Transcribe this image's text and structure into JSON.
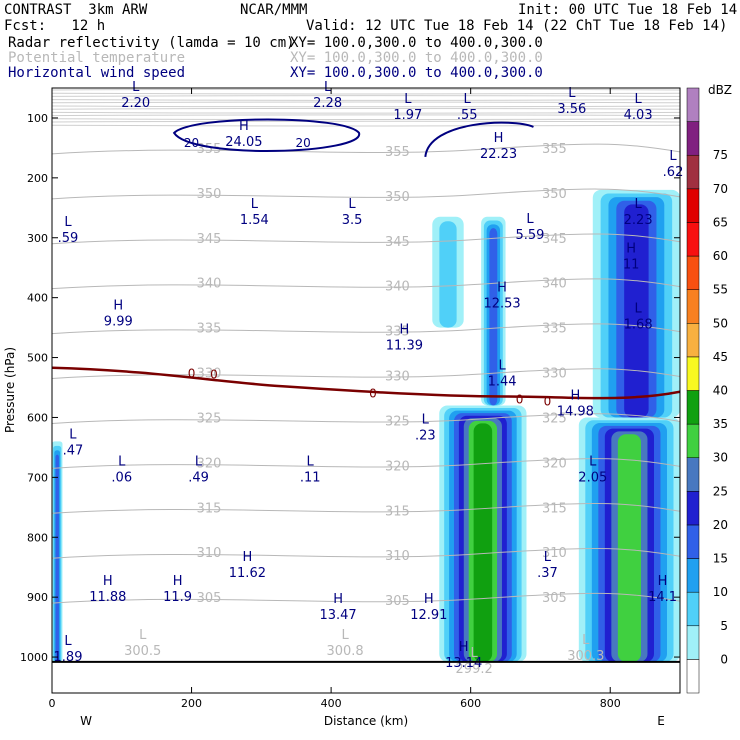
{
  "header": {
    "model": "CONTRAST  3km ARW",
    "center": "NCAR/MMM",
    "init": "Init: 00 UTC Tue 18 Feb 14",
    "fcst": "Fcst:   12 h",
    "valid": "Valid: 12 UTC Tue 18 Feb 14 (22 ChT Tue 18 Feb 14)",
    "fields": [
      {
        "name": "Radar reflectivity (lamda = 10 cm)",
        "xy": "XY= 100.0,300.0 to 400.0,300.0"
      },
      {
        "name": "Potential temperature",
        "xy": "XY= 100.0,300.0 to 400.0,300.0"
      },
      {
        "name": "Horizontal wind speed",
        "xy": "XY= 100.0,300.0 to 400.0,300.0"
      }
    ]
  },
  "chart_data": {
    "type": "heatmap",
    "xlabel": "Distance (km)",
    "ylabel": "Pressure (hPa)",
    "xlim": [
      0,
      900
    ],
    "ylim": [
      1060,
      50
    ],
    "x_ticks": [
      0,
      200,
      400,
      600,
      800
    ],
    "y_ticks": [
      100,
      200,
      300,
      400,
      500,
      600,
      700,
      800,
      900,
      1000
    ],
    "x_end_labels": {
      "left": "W",
      "right": "E"
    },
    "colorbar": {
      "unit": "dBZ",
      "levels": [
        0,
        5,
        10,
        15,
        20,
        25,
        30,
        35,
        40,
        45,
        50,
        55,
        60,
        65,
        70,
        75
      ],
      "colors": [
        "#ffffff",
        "#a0f0f8",
        "#50d0f8",
        "#20a0f0",
        "#3060e8",
        "#2020d0",
        "#4878c0",
        "#40d040",
        "#10a010",
        "#f8f820",
        "#f8b040",
        "#f88020",
        "#f85010",
        "#f81010",
        "#e00000",
        "#a03040",
        "#802080",
        "#b080c0"
      ]
    },
    "reflectivity_cells": [
      {
        "x0": 0,
        "x1": 15,
        "p0": 640,
        "p1": 1008,
        "max_dbz": 20
      },
      {
        "x0": 555,
        "x1": 680,
        "p0": 580,
        "p1": 1008,
        "max_dbz": 40
      },
      {
        "x0": 545,
        "x1": 590,
        "p0": 265,
        "p1": 450,
        "max_dbz": 10
      },
      {
        "x0": 615,
        "x1": 650,
        "p0": 265,
        "p1": 580,
        "max_dbz": 20
      },
      {
        "x0": 755,
        "x1": 900,
        "p0": 600,
        "p1": 1008,
        "max_dbz": 35
      },
      {
        "x0": 775,
        "x1": 900,
        "p0": 220,
        "p1": 600,
        "max_dbz": 25
      }
    ],
    "theta_isolines": [
      {
        "value": 355,
        "label": "355"
      },
      {
        "value": 350,
        "label": "350"
      },
      {
        "value": 345,
        "label": "345"
      },
      {
        "value": 340,
        "label": "340"
      },
      {
        "value": 335,
        "label": "335"
      },
      {
        "value": 330,
        "label": "330"
      },
      {
        "value": 325,
        "label": "325"
      },
      {
        "value": 320,
        "label": "320"
      },
      {
        "value": 315,
        "label": "315"
      },
      {
        "value": 310,
        "label": "310"
      },
      {
        "value": 305,
        "label": "305"
      }
    ],
    "wind_contours": [
      "20",
      "20",
      "0",
      "0",
      "0",
      "0",
      "0"
    ],
    "grey_extrema": [
      {
        "t": "L",
        "v": "300.5",
        "x": 130,
        "p": 990
      },
      {
        "t": "L",
        "v": "300.8",
        "x": 420,
        "p": 990
      },
      {
        "t": "L",
        "v": "300.3",
        "x": 765,
        "p": 998
      },
      {
        "t": "L",
        "v": "299.2",
        "x": 605,
        "p": 1020
      }
    ],
    "wind_extrema": [
      {
        "t": "L",
        "v": "2.20",
        "x": 120,
        "p": 75
      },
      {
        "t": "L",
        "v": "2.28",
        "x": 395,
        "p": 75
      },
      {
        "t": "L",
        "v": "1.97",
        "x": 510,
        "p": 95
      },
      {
        "t": "L",
        "v": ".55",
        "x": 595,
        "p": 95
      },
      {
        "t": "L",
        "v": "3.56",
        "x": 745,
        "p": 85
      },
      {
        "t": "L",
        "v": "4.03",
        "x": 840,
        "p": 95
      },
      {
        "t": "H",
        "v": "24.05",
        "x": 275,
        "p": 140
      },
      {
        "t": "H",
        "v": "22.23",
        "x": 640,
        "p": 160
      },
      {
        "t": "L",
        "v": ".62",
        "x": 890,
        "p": 190
      },
      {
        "t": "L",
        "v": "1.54",
        "x": 290,
        "p": 270
      },
      {
        "t": "L",
        "v": "3.5",
        "x": 430,
        "p": 270
      },
      {
        "t": "L",
        "v": "5.59",
        "x": 685,
        "p": 295
      },
      {
        "t": "L",
        "v": "2.23",
        "x": 840,
        "p": 270
      },
      {
        "t": "L",
        "v": ".59",
        "x": 5,
        "p": 300
      },
      {
        "t": "H",
        "v": "11",
        "x": 830,
        "p": 345
      },
      {
        "t": "H",
        "v": "12.53",
        "x": 645,
        "p": 410
      },
      {
        "t": "H",
        "v": "9.99",
        "x": 95,
        "p": 440
      },
      {
        "t": "L",
        "v": "1.68",
        "x": 840,
        "p": 445
      },
      {
        "t": "H",
        "v": "11.39",
        "x": 505,
        "p": 480
      },
      {
        "t": "L",
        "v": "1.44",
        "x": 645,
        "p": 540
      },
      {
        "t": "H",
        "v": "14.98",
        "x": 750,
        "p": 590
      },
      {
        "t": "L",
        "v": ".23",
        "x": 535,
        "p": 630
      },
      {
        "t": "L",
        "v": ".47",
        "x": 30,
        "p": 655
      },
      {
        "t": "L",
        "v": ".06",
        "x": 100,
        "p": 700
      },
      {
        "t": "L",
        "v": ".49",
        "x": 210,
        "p": 700
      },
      {
        "t": "L",
        "v": ".11",
        "x": 370,
        "p": 700
      },
      {
        "t": "L",
        "v": "2.05",
        "x": 775,
        "p": 700
      },
      {
        "t": "H",
        "v": "11.62",
        "x": 280,
        "p": 860
      },
      {
        "t": "L",
        "v": ".37",
        "x": 710,
        "p": 860
      },
      {
        "t": "H",
        "v": "11.88",
        "x": 80,
        "p": 900
      },
      {
        "t": "H",
        "v": "11.9",
        "x": 180,
        "p": 900
      },
      {
        "t": "H",
        "v": "13.47",
        "x": 410,
        "p": 930
      },
      {
        "t": "H",
        "v": "12.91",
        "x": 540,
        "p": 930
      },
      {
        "t": "H",
        "v": "14.1",
        "x": 875,
        "p": 900
      },
      {
        "t": "L",
        "v": "1.89",
        "x": 15,
        "p": 1000
      },
      {
        "t": "H",
        "v": "13.14",
        "x": 590,
        "p": 1010
      }
    ]
  }
}
